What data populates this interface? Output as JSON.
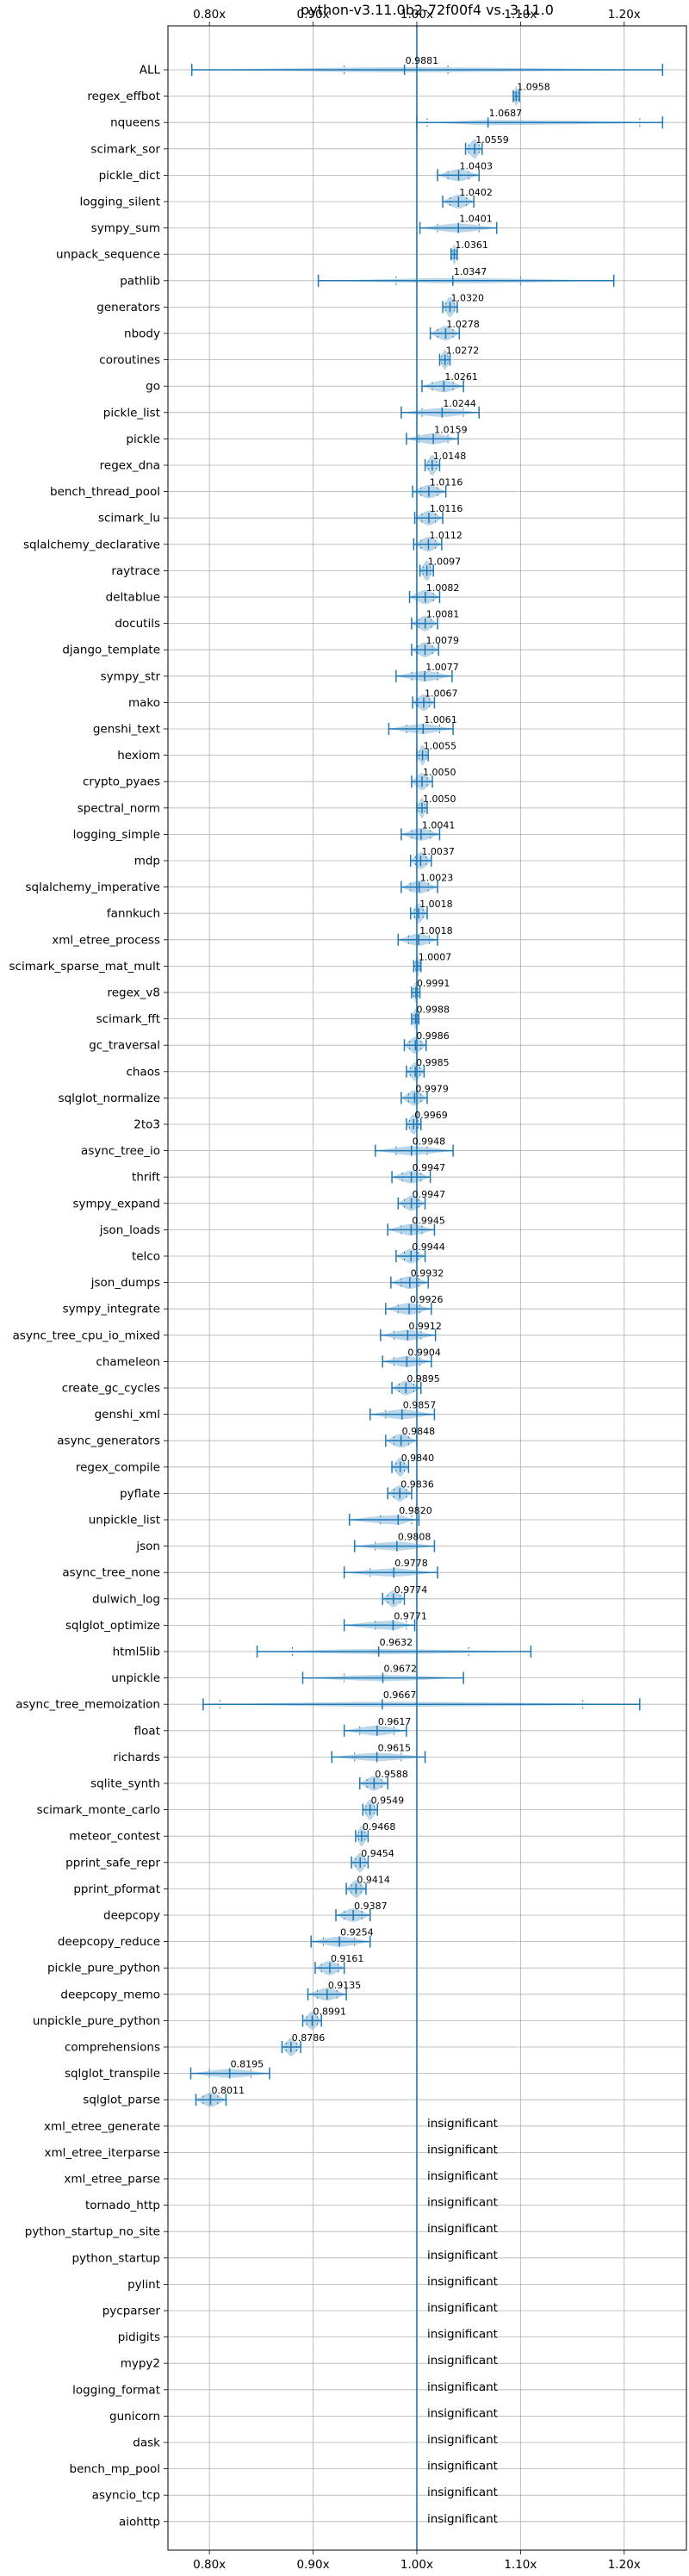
{
  "chart_data": {
    "type": "violin",
    "title": "python-v3.11.0b2-72f00f4 vs. 3.11.0",
    "x_ticks": [
      "0.80x",
      "0.90x",
      "1.00x",
      "1.10x",
      "1.20x"
    ],
    "x_tick_values": [
      0.8,
      0.9,
      1.0,
      1.1,
      1.2
    ],
    "xlim": [
      0.76,
      1.26
    ],
    "reference_line": 1.0,
    "grid": true,
    "insignificant_label": "insignificant",
    "benchmarks": [
      {
        "name": "ALL",
        "mean": "0.9881",
        "value": 0.9881,
        "lo": 0.783,
        "hi": 1.237,
        "q1": 0.93,
        "q3": 1.03
      },
      {
        "name": "regex_effbot",
        "mean": "1.0958",
        "value": 1.0958,
        "lo": 1.093,
        "hi": 1.099,
        "q1": 1.094,
        "q3": 1.098
      },
      {
        "name": "nqueens",
        "mean": "1.0687",
        "value": 1.0687,
        "lo": 1.0,
        "hi": 1.237,
        "q1": 1.01,
        "q3": 1.215
      },
      {
        "name": "scimark_sor",
        "mean": "1.0559",
        "value": 1.0559,
        "lo": 1.047,
        "hi": 1.063,
        "q1": 1.05,
        "q3": 1.06
      },
      {
        "name": "pickle_dict",
        "mean": "1.0403",
        "value": 1.0403,
        "lo": 1.02,
        "hi": 1.06,
        "q1": 1.03,
        "q3": 1.05
      },
      {
        "name": "logging_silent",
        "mean": "1.0402",
        "value": 1.0402,
        "lo": 1.025,
        "hi": 1.055,
        "q1": 1.032,
        "q3": 1.048
      },
      {
        "name": "sympy_sum",
        "mean": "1.0401",
        "value": 1.0401,
        "lo": 1.003,
        "hi": 1.077,
        "q1": 1.02,
        "q3": 1.06
      },
      {
        "name": "unpack_sequence",
        "mean": "1.0361",
        "value": 1.0361,
        "lo": 1.033,
        "hi": 1.039,
        "q1": 1.034,
        "q3": 1.038
      },
      {
        "name": "pathlib",
        "mean": "1.0347",
        "value": 1.0347,
        "lo": 0.905,
        "hi": 1.19,
        "q1": 0.98,
        "q3": 1.1
      },
      {
        "name": "generators",
        "mean": "1.0320",
        "value": 1.032,
        "lo": 1.025,
        "hi": 1.039,
        "q1": 1.028,
        "q3": 1.036
      },
      {
        "name": "nbody",
        "mean": "1.0278",
        "value": 1.0278,
        "lo": 1.013,
        "hi": 1.041,
        "q1": 1.02,
        "q3": 1.035
      },
      {
        "name": "coroutines",
        "mean": "1.0272",
        "value": 1.0272,
        "lo": 1.022,
        "hi": 1.032,
        "q1": 1.024,
        "q3": 1.03
      },
      {
        "name": "go",
        "mean": "1.0261",
        "value": 1.0261,
        "lo": 1.005,
        "hi": 1.045,
        "q1": 1.015,
        "q3": 1.035
      },
      {
        "name": "pickle_list",
        "mean": "1.0244",
        "value": 1.0244,
        "lo": 0.985,
        "hi": 1.06,
        "q1": 1.005,
        "q3": 1.045
      },
      {
        "name": "pickle",
        "mean": "1.0159",
        "value": 1.0159,
        "lo": 0.99,
        "hi": 1.04,
        "q1": 1.002,
        "q3": 1.03
      },
      {
        "name": "regex_dna",
        "mean": "1.0148",
        "value": 1.0148,
        "lo": 1.008,
        "hi": 1.022,
        "q1": 1.011,
        "q3": 1.019
      },
      {
        "name": "bench_thread_pool",
        "mean": "1.0116",
        "value": 1.0116,
        "lo": 0.996,
        "hi": 1.028,
        "q1": 1.004,
        "q3": 1.02
      },
      {
        "name": "scimark_lu",
        "mean": "1.0116",
        "value": 1.0116,
        "lo": 0.998,
        "hi": 1.025,
        "q1": 1.005,
        "q3": 1.018
      },
      {
        "name": "sqlalchemy_declarative",
        "mean": "1.0112",
        "value": 1.0112,
        "lo": 0.997,
        "hi": 1.024,
        "q1": 1.004,
        "q3": 1.018
      },
      {
        "name": "raytrace",
        "mean": "1.0097",
        "value": 1.0097,
        "lo": 1.003,
        "hi": 1.016,
        "q1": 1.006,
        "q3": 1.013
      },
      {
        "name": "deltablue",
        "mean": "1.0082",
        "value": 1.0082,
        "lo": 0.993,
        "hi": 1.022,
        "q1": 1.0,
        "q3": 1.016
      },
      {
        "name": "docutils",
        "mean": "1.0081",
        "value": 1.0081,
        "lo": 0.995,
        "hi": 1.02,
        "q1": 1.002,
        "q3": 1.014
      },
      {
        "name": "django_template",
        "mean": "1.0079",
        "value": 1.0079,
        "lo": 0.995,
        "hi": 1.021,
        "q1": 1.001,
        "q3": 1.015
      },
      {
        "name": "sympy_str",
        "mean": "1.0077",
        "value": 1.0077,
        "lo": 0.98,
        "hi": 1.034,
        "q1": 0.995,
        "q3": 1.02
      },
      {
        "name": "mako",
        "mean": "1.0067",
        "value": 1.0067,
        "lo": 0.996,
        "hi": 1.017,
        "q1": 1.001,
        "q3": 1.012
      },
      {
        "name": "genshi_text",
        "mean": "1.0061",
        "value": 1.0061,
        "lo": 0.973,
        "hi": 1.035,
        "q1": 0.99,
        "q3": 1.022
      },
      {
        "name": "hexiom",
        "mean": "1.0055",
        "value": 1.0055,
        "lo": 1.0,
        "hi": 1.011,
        "q1": 1.002,
        "q3": 1.009
      },
      {
        "name": "crypto_pyaes",
        "mean": "1.0050",
        "value": 1.005,
        "lo": 0.995,
        "hi": 1.015,
        "q1": 1.0,
        "q3": 1.01
      },
      {
        "name": "spectral_norm",
        "mean": "1.0050",
        "value": 1.005,
        "lo": 1.0,
        "hi": 1.01,
        "q1": 1.002,
        "q3": 1.008
      },
      {
        "name": "logging_simple",
        "mean": "1.0041",
        "value": 1.0041,
        "lo": 0.985,
        "hi": 1.022,
        "q1": 0.995,
        "q3": 1.013
      },
      {
        "name": "mdp",
        "mean": "1.0037",
        "value": 1.0037,
        "lo": 0.994,
        "hi": 1.014,
        "q1": 0.999,
        "q3": 1.009
      },
      {
        "name": "sqlalchemy_imperative",
        "mean": "1.0023",
        "value": 1.0023,
        "lo": 0.985,
        "hi": 1.02,
        "q1": 0.994,
        "q3": 1.011
      },
      {
        "name": "fannkuch",
        "mean": "1.0018",
        "value": 1.0018,
        "lo": 0.994,
        "hi": 1.01,
        "q1": 0.998,
        "q3": 1.006
      },
      {
        "name": "xml_etree_process",
        "mean": "1.0018",
        "value": 1.0018,
        "lo": 0.982,
        "hi": 1.02,
        "q1": 0.992,
        "q3": 1.012
      },
      {
        "name": "scimark_sparse_mat_mult",
        "mean": "1.0007",
        "value": 1.0007,
        "lo": 0.997,
        "hi": 1.004,
        "q1": 0.999,
        "q3": 1.003
      },
      {
        "name": "regex_v8",
        "mean": "0.9991",
        "value": 0.9991,
        "lo": 0.995,
        "hi": 1.003,
        "q1": 0.997,
        "q3": 1.001
      },
      {
        "name": "scimark_fft",
        "mean": "0.9988",
        "value": 0.9988,
        "lo": 0.995,
        "hi": 1.002,
        "q1": 0.997,
        "q3": 1.001
      },
      {
        "name": "gc_traversal",
        "mean": "0.9986",
        "value": 0.9986,
        "lo": 0.988,
        "hi": 1.009,
        "q1": 0.993,
        "q3": 1.004
      },
      {
        "name": "chaos",
        "mean": "0.9985",
        "value": 0.9985,
        "lo": 0.99,
        "hi": 1.007,
        "q1": 0.994,
        "q3": 1.003
      },
      {
        "name": "sqlglot_normalize",
        "mean": "0.9979",
        "value": 0.9979,
        "lo": 0.985,
        "hi": 1.01,
        "q1": 0.992,
        "q3": 1.004
      },
      {
        "name": "2to3",
        "mean": "0.9969",
        "value": 0.9969,
        "lo": 0.99,
        "hi": 1.004,
        "q1": 0.993,
        "q3": 1.001
      },
      {
        "name": "async_tree_io",
        "mean": "0.9948",
        "value": 0.9948,
        "lo": 0.96,
        "hi": 1.035,
        "q1": 0.98,
        "q3": 1.01
      },
      {
        "name": "thrift",
        "mean": "0.9947",
        "value": 0.9947,
        "lo": 0.976,
        "hi": 1.013,
        "q1": 0.986,
        "q3": 1.004
      },
      {
        "name": "sympy_expand",
        "mean": "0.9947",
        "value": 0.9947,
        "lo": 0.982,
        "hi": 1.008,
        "q1": 0.988,
        "q3": 1.002
      },
      {
        "name": "json_loads",
        "mean": "0.9945",
        "value": 0.9945,
        "lo": 0.972,
        "hi": 1.017,
        "q1": 0.985,
        "q3": 1.005
      },
      {
        "name": "telco",
        "mean": "0.9944",
        "value": 0.9944,
        "lo": 0.98,
        "hi": 1.008,
        "q1": 0.988,
        "q3": 1.001
      },
      {
        "name": "json_dumps",
        "mean": "0.9932",
        "value": 0.9932,
        "lo": 0.975,
        "hi": 1.011,
        "q1": 0.985,
        "q3": 1.002
      },
      {
        "name": "sympy_integrate",
        "mean": "0.9926",
        "value": 0.9926,
        "lo": 0.97,
        "hi": 1.014,
        "q1": 0.982,
        "q3": 1.003
      },
      {
        "name": "async_tree_cpu_io_mixed",
        "mean": "0.9912",
        "value": 0.9912,
        "lo": 0.965,
        "hi": 1.018,
        "q1": 0.978,
        "q3": 1.004
      },
      {
        "name": "chameleon",
        "mean": "0.9904",
        "value": 0.9904,
        "lo": 0.967,
        "hi": 1.014,
        "q1": 0.978,
        "q3": 1.003
      },
      {
        "name": "create_gc_cycles",
        "mean": "0.9895",
        "value": 0.9895,
        "lo": 0.976,
        "hi": 1.004,
        "q1": 0.983,
        "q3": 0.997
      },
      {
        "name": "genshi_xml",
        "mean": "0.9857",
        "value": 0.9857,
        "lo": 0.955,
        "hi": 1.017,
        "q1": 0.97,
        "q3": 1.0
      },
      {
        "name": "async_generators",
        "mean": "0.9848",
        "value": 0.9848,
        "lo": 0.97,
        "hi": 1.0,
        "q1": 0.978,
        "q3": 0.992
      },
      {
        "name": "regex_compile",
        "mean": "0.9840",
        "value": 0.984,
        "lo": 0.976,
        "hi": 0.992,
        "q1": 0.98,
        "q3": 0.988
      },
      {
        "name": "pyflate",
        "mean": "0.9836",
        "value": 0.9836,
        "lo": 0.972,
        "hi": 0.995,
        "q1": 0.978,
        "q3": 0.99
      },
      {
        "name": "unpickle_list",
        "mean": "0.9820",
        "value": 0.982,
        "lo": 0.935,
        "hi": 1.002,
        "q1": 0.965,
        "q3": 0.995
      },
      {
        "name": "json",
        "mean": "0.9808",
        "value": 0.9808,
        "lo": 0.94,
        "hi": 1.017,
        "q1": 0.96,
        "q3": 1.0
      },
      {
        "name": "async_tree_none",
        "mean": "0.9778",
        "value": 0.9778,
        "lo": 0.93,
        "hi": 1.02,
        "q1": 0.955,
        "q3": 1.0
      },
      {
        "name": "dulwich_log",
        "mean": "0.9774",
        "value": 0.9774,
        "lo": 0.967,
        "hi": 0.988,
        "q1": 0.972,
        "q3": 0.984
      },
      {
        "name": "sqlglot_optimize",
        "mean": "0.9771",
        "value": 0.9771,
        "lo": 0.93,
        "hi": 0.998,
        "q1": 0.96,
        "q3": 0.99
      },
      {
        "name": "html5lib",
        "mean": "0.9632",
        "value": 0.9632,
        "lo": 0.846,
        "hi": 1.11,
        "q1": 0.88,
        "q3": 1.05
      },
      {
        "name": "unpickle",
        "mean": "0.9672",
        "value": 0.9672,
        "lo": 0.89,
        "hi": 1.045,
        "q1": 0.93,
        "q3": 1.0
      },
      {
        "name": "async_tree_memoization",
        "mean": "0.9667",
        "value": 0.9667,
        "lo": 0.794,
        "hi": 1.215,
        "q1": 0.81,
        "q3": 1.16
      },
      {
        "name": "float",
        "mean": "0.9617",
        "value": 0.9617,
        "lo": 0.93,
        "hi": 0.99,
        "q1": 0.945,
        "q3": 0.978
      },
      {
        "name": "richards",
        "mean": "0.9615",
        "value": 0.9615,
        "lo": 0.918,
        "hi": 1.008,
        "q1": 0.94,
        "q3": 0.985
      },
      {
        "name": "sqlite_synth",
        "mean": "0.9588",
        "value": 0.9588,
        "lo": 0.945,
        "hi": 0.972,
        "q1": 0.952,
        "q3": 0.966
      },
      {
        "name": "scimark_monte_carlo",
        "mean": "0.9549",
        "value": 0.9549,
        "lo": 0.948,
        "hi": 0.962,
        "q1": 0.951,
        "q3": 0.959
      },
      {
        "name": "meteor_contest",
        "mean": "0.9468",
        "value": 0.9468,
        "lo": 0.941,
        "hi": 0.953,
        "q1": 0.944,
        "q3": 0.95
      },
      {
        "name": "pprint_safe_repr",
        "mean": "0.9454",
        "value": 0.9454,
        "lo": 0.937,
        "hi": 0.953,
        "q1": 0.941,
        "q3": 0.95
      },
      {
        "name": "pprint_pformat",
        "mean": "0.9414",
        "value": 0.9414,
        "lo": 0.932,
        "hi": 0.951,
        "q1": 0.937,
        "q3": 0.946
      },
      {
        "name": "deepcopy",
        "mean": "0.9387",
        "value": 0.9387,
        "lo": 0.922,
        "hi": 0.955,
        "q1": 0.93,
        "q3": 0.947
      },
      {
        "name": "deepcopy_reduce",
        "mean": "0.9254",
        "value": 0.9254,
        "lo": 0.898,
        "hi": 0.955,
        "q1": 0.91,
        "q3": 0.94
      },
      {
        "name": "pickle_pure_python",
        "mean": "0.9161",
        "value": 0.9161,
        "lo": 0.902,
        "hi": 0.93,
        "q1": 0.908,
        "q3": 0.924
      },
      {
        "name": "deepcopy_memo",
        "mean": "0.9135",
        "value": 0.9135,
        "lo": 0.895,
        "hi": 0.932,
        "q1": 0.904,
        "q3": 0.923
      },
      {
        "name": "unpickle_pure_python",
        "mean": "0.8991",
        "value": 0.8991,
        "lo": 0.89,
        "hi": 0.908,
        "q1": 0.894,
        "q3": 0.904
      },
      {
        "name": "comprehensions",
        "mean": "0.8786",
        "value": 0.8786,
        "lo": 0.87,
        "hi": 0.888,
        "q1": 0.874,
        "q3": 0.884
      },
      {
        "name": "sqlglot_transpile",
        "mean": "0.8195",
        "value": 0.8195,
        "lo": 0.782,
        "hi": 0.858,
        "q1": 0.8,
        "q3": 0.84
      },
      {
        "name": "sqlglot_parse",
        "mean": "0.8011",
        "value": 0.8011,
        "lo": 0.787,
        "hi": 0.816,
        "q1": 0.794,
        "q3": 0.808
      },
      {
        "name": "xml_etree_generate",
        "insignificant": true
      },
      {
        "name": "xml_etree_iterparse",
        "insignificant": true
      },
      {
        "name": "xml_etree_parse",
        "insignificant": true
      },
      {
        "name": "tornado_http",
        "insignificant": true
      },
      {
        "name": "python_startup_no_site",
        "insignificant": true
      },
      {
        "name": "python_startup",
        "insignificant": true
      },
      {
        "name": "pylint",
        "insignificant": true
      },
      {
        "name": "pycparser",
        "insignificant": true
      },
      {
        "name": "pidigits",
        "insignificant": true
      },
      {
        "name": "mypy2",
        "insignificant": true
      },
      {
        "name": "logging_format",
        "insignificant": true
      },
      {
        "name": "gunicorn",
        "insignificant": true
      },
      {
        "name": "dask",
        "insignificant": true
      },
      {
        "name": "bench_mp_pool",
        "insignificant": true
      },
      {
        "name": "asyncio_tcp",
        "insignificant": true
      },
      {
        "name": "aiohttp",
        "insignificant": true
      }
    ]
  }
}
